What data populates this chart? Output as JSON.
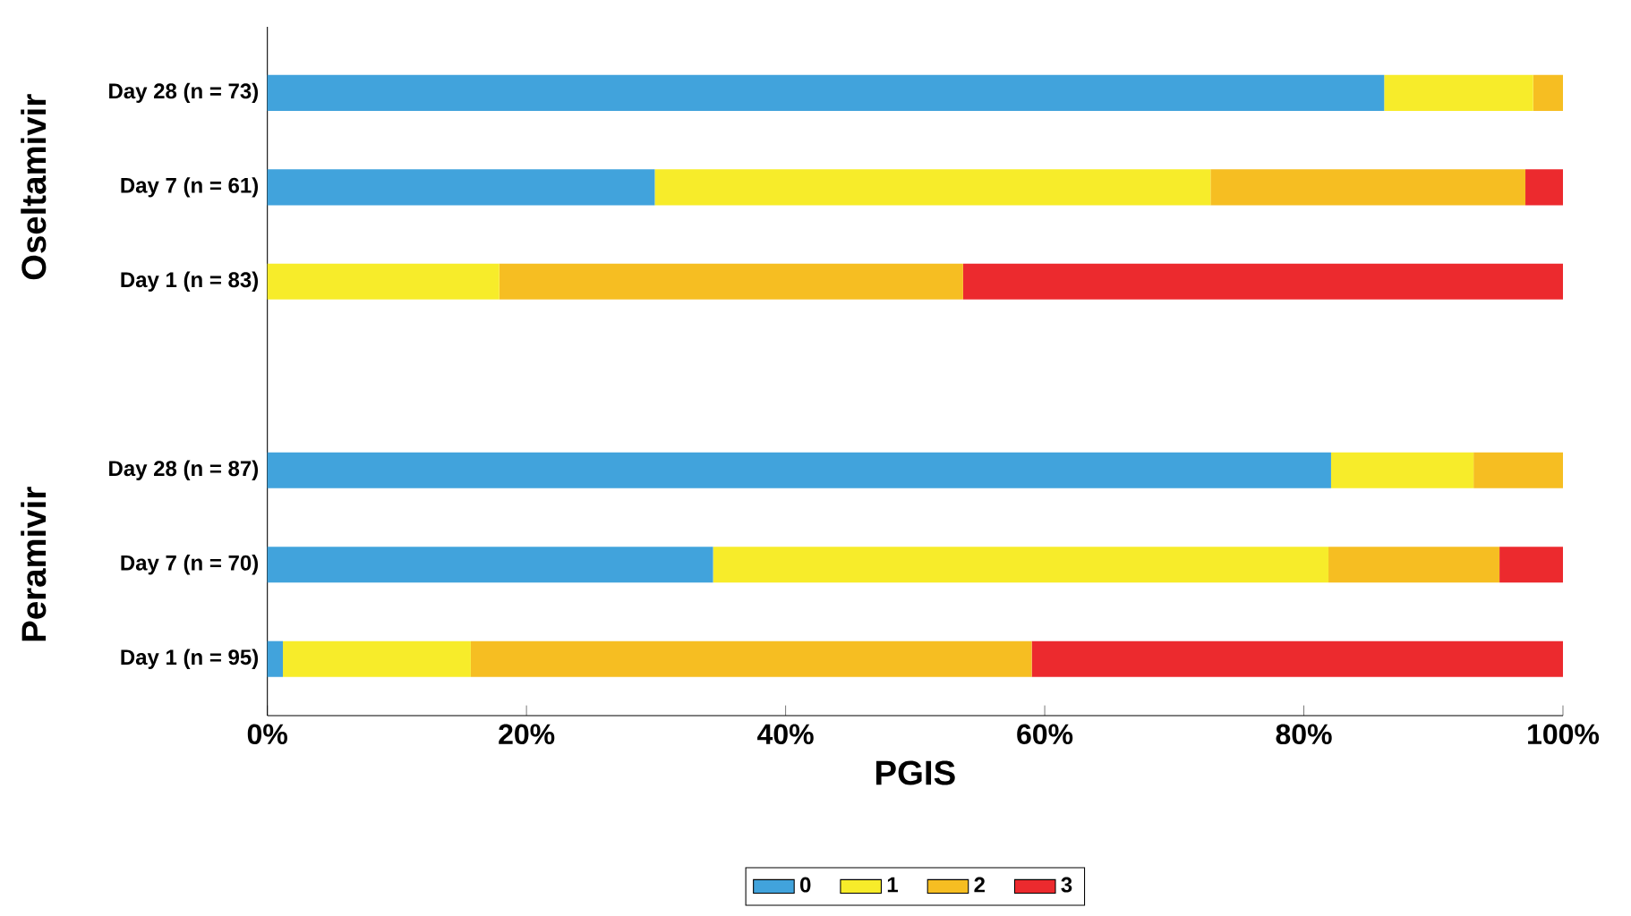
{
  "chart_data": {
    "type": "bar",
    "orientation": "horizontal",
    "stacked": true,
    "xlabel": "PGIS",
    "categories": [
      "Day 28 (n = 73)",
      "Day 7 (n = 61)",
      "Day 1 (n = 83)",
      null,
      "Day 28 (n = 87)",
      "Day 7 (n = 70)",
      "Day 1 (n = 95)"
    ],
    "series": [
      {
        "name": "0",
        "color": "#41a3dc",
        "values": [
          86.2,
          29.9,
          0,
          null,
          82.1,
          34.4,
          1.2
        ]
      },
      {
        "name": "1",
        "color": "#f7ec2a",
        "values": [
          11.5,
          42.9,
          17.9,
          null,
          11.0,
          47.5,
          14.5
        ]
      },
      {
        "name": "2",
        "color": "#f6be22",
        "values": [
          2.3,
          24.3,
          35.8,
          null,
          6.9,
          13.2,
          43.3
        ]
      },
      {
        "name": "3",
        "color": "#ec2a2e",
        "values": [
          0,
          2.9,
          46.3,
          null,
          0,
          4.9,
          41.0
        ]
      }
    ],
    "annotations": [
      "Oseltamivir",
      "Peramivir"
    ],
    "xlim": [
      0,
      100
    ],
    "xticks": [
      {
        "value": 0,
        "label": "0%"
      },
      {
        "value": 20,
        "label": "20%"
      },
      {
        "value": 40,
        "label": "40%"
      },
      {
        "value": 60,
        "label": "60%"
      },
      {
        "value": 80,
        "label": "80%"
      },
      {
        "value": 100,
        "label": "100%"
      }
    ],
    "legend": "bottom"
  }
}
